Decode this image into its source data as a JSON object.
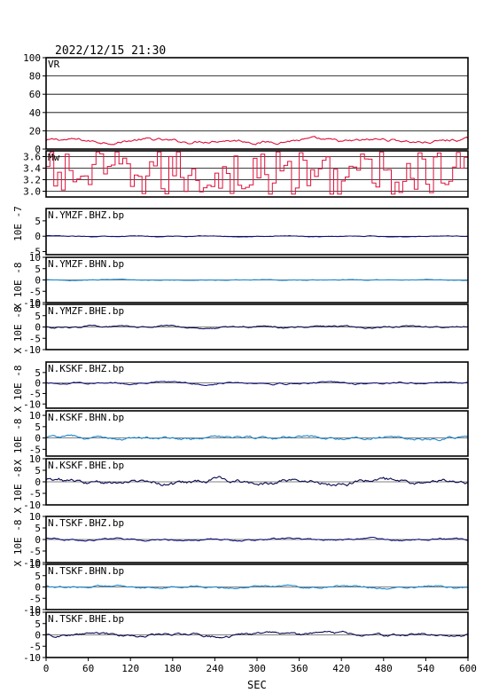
{
  "header": {
    "timestamp": "2022/12/15 21:30"
  },
  "colors": {
    "vr": "#e0103a",
    "mw": "#e0103a",
    "bhz": "#10107a",
    "bhn": "#1a86cc",
    "bhe": "#0a0a50"
  },
  "chart_data": {
    "type": "line",
    "xlabel": "SEC",
    "x_ticks": [
      0,
      60,
      120,
      180,
      240,
      300,
      360,
      420,
      480,
      540,
      600
    ],
    "xlim": [
      0,
      600
    ],
    "panels": [
      {
        "id": "vr",
        "title": "VR",
        "ylim": [
          0,
          100
        ],
        "yticks": [
          0,
          20,
          40,
          60,
          80,
          100
        ],
        "grid": true,
        "color_key": "vr",
        "step": false,
        "baseline": 9,
        "amp": 2.2
      },
      {
        "id": "mw",
        "title": "Mw",
        "ylim": [
          2.9,
          3.7
        ],
        "yticks": [
          3.0,
          3.2,
          3.4,
          3.6
        ],
        "grid": true,
        "color_key": "mw",
        "step": true,
        "baseline": 3.3,
        "amp": 0.3
      },
      {
        "id": "ymzf-bhz",
        "title": "N.YMZF.BHZ.bp",
        "ylim": [
          -6,
          9
        ],
        "yticks": [
          -5,
          0,
          5
        ],
        "grid": false,
        "color_key": "bhz",
        "step": false,
        "baseline": 0,
        "amp": 0.15
      },
      {
        "id": "ymzf-bhn",
        "title": "N.YMZF.BHN.bp",
        "ylim": [
          -10,
          10
        ],
        "yticks": [
          -10,
          -5,
          0,
          5,
          10
        ],
        "grid": false,
        "color_key": "bhn",
        "step": false,
        "baseline": 0,
        "amp": 0.2
      },
      {
        "id": "ymzf-bhe",
        "title": "N.YMZF.BHE.bp",
        "ylim": [
          -10,
          10
        ],
        "yticks": [
          -10,
          -5,
          0,
          5,
          10
        ],
        "grid": false,
        "color_key": "bhe",
        "step": false,
        "baseline": 0,
        "amp": 0.5
      },
      {
        "id": "kskf-bhz",
        "title": "N.KSKF.BHZ.bp",
        "ylim": [
          -12,
          10
        ],
        "yticks": [
          -10,
          -5,
          0,
          5
        ],
        "grid": false,
        "color_key": "bhz",
        "step": false,
        "baseline": 0,
        "amp": 0.5
      },
      {
        "id": "kskf-bhn",
        "title": "N.KSKF.BHN.bp",
        "ylim": [
          -8,
          12
        ],
        "yticks": [
          -5,
          0,
          5,
          10
        ],
        "grid": false,
        "color_key": "bhn",
        "step": false,
        "baseline": 0,
        "amp": 0.8
      },
      {
        "id": "kskf-bhe",
        "title": "N.KSKF.BHE.bp",
        "ylim": [
          -10,
          10
        ],
        "yticks": [
          -10,
          -5,
          0,
          5,
          10
        ],
        "grid": false,
        "color_key": "bhe",
        "step": false,
        "baseline": 0,
        "amp": 1.2
      },
      {
        "id": "tskf-bhz",
        "title": "N.TSKF.BHZ.bp",
        "ylim": [
          -10,
          10
        ],
        "yticks": [
          -10,
          -5,
          0,
          5,
          10
        ],
        "grid": false,
        "color_key": "bhz",
        "step": false,
        "baseline": 0,
        "amp": 0.5
      },
      {
        "id": "tskf-bhn",
        "title": "N.TSKF.BHN.bp",
        "ylim": [
          -10,
          10
        ],
        "yticks": [
          -10,
          -5,
          0,
          5,
          10
        ],
        "grid": false,
        "color_key": "bhn",
        "step": false,
        "baseline": 0,
        "amp": 0.6
      },
      {
        "id": "tskf-bhe",
        "title": "N.TSKF.BHE.bp",
        "ylim": [
          -10,
          10
        ],
        "yticks": [
          -10,
          -5,
          0,
          5,
          10
        ],
        "grid": false,
        "color_key": "bhe",
        "step": false,
        "baseline": 0,
        "amp": 0.8
      }
    ],
    "unit_labels": [
      {
        "text": "10E -7"
      },
      {
        "text": "X 10E -8"
      },
      {
        "text": "X 10E -8"
      },
      {
        "text": "X 10E -8"
      },
      {
        "text": "X 10E -8"
      },
      {
        "text": "X 10E -8"
      },
      {
        "text": "X 10E -8"
      }
    ]
  }
}
